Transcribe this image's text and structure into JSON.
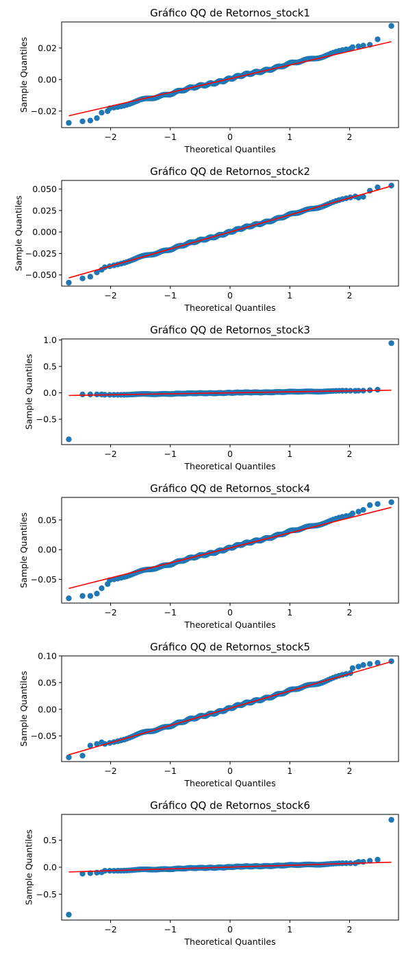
{
  "chart_data": [
    {
      "type": "scatter",
      "title": "Gráfico QQ de Retornos_stock1",
      "xlabel": "Theoretical Quantiles",
      "ylabel": "Sample Quantiles",
      "xlim": [
        -2.82,
        2.82
      ],
      "ylim": [
        -0.0305,
        0.0365
      ],
      "xticks": [
        -2,
        -1,
        0,
        1,
        2
      ],
      "yticks": [
        -0.02,
        0.0,
        0.02
      ],
      "ytick_labels": [
        "−0.02",
        "0.00",
        "0.02"
      ],
      "line": {
        "slope": 0.0087,
        "intercept": 0.0005,
        "color": "#ff0000"
      },
      "tails": {
        "low": [
          [
            -2.7,
            -0.0275
          ],
          [
            -2.47,
            -0.0265
          ],
          [
            -2.34,
            -0.026
          ],
          [
            -2.23,
            -0.0245
          ],
          [
            -2.15,
            -0.021
          ],
          [
            -2.05,
            -0.02
          ]
        ],
        "high": [
          [
            2.05,
            0.0205
          ],
          [
            2.15,
            0.021
          ],
          [
            2.23,
            0.0215
          ],
          [
            2.34,
            0.022
          ],
          [
            2.47,
            0.0255
          ],
          [
            2.7,
            0.034
          ]
        ]
      },
      "body": {
        "slope": 0.0093,
        "intercept": 0.0005,
        "wiggle": 0.0008
      },
      "marker_color": "#1f77b4"
    },
    {
      "type": "scatter",
      "title": "Gráfico QQ de Retornos_stock2",
      "xlabel": "Theoretical Quantiles",
      "ylabel": "Sample Quantiles",
      "xlim": [
        -2.82,
        2.82
      ],
      "ylim": [
        -0.063,
        0.06
      ],
      "xticks": [
        -2,
        -1,
        0,
        1,
        2
      ],
      "yticks": [
        -0.05,
        -0.025,
        0.0,
        0.025,
        0.05
      ],
      "ytick_labels": [
        "−0.050",
        "−0.025",
        "0.000",
        "0.025",
        "0.050"
      ],
      "line": {
        "slope": 0.0198,
        "intercept": 0.0,
        "color": "#ff0000"
      },
      "tails": {
        "low": [
          [
            -2.7,
            -0.059
          ],
          [
            -2.47,
            -0.054
          ],
          [
            -2.34,
            -0.052
          ],
          [
            -2.23,
            -0.047
          ],
          [
            -2.15,
            -0.044
          ]
        ],
        "high": [
          [
            2.15,
            0.04
          ],
          [
            2.23,
            0.041
          ],
          [
            2.34,
            0.048
          ],
          [
            2.47,
            0.052
          ],
          [
            2.7,
            0.054
          ]
        ]
      },
      "body": {
        "slope": 0.0198,
        "intercept": 0.0,
        "wiggle": 0.0012
      },
      "marker_color": "#1f77b4"
    },
    {
      "type": "scatter",
      "title": "Gráfico QQ de Retornos_stock3",
      "xlabel": "Theoretical Quantiles",
      "ylabel": "Sample Quantiles",
      "xlim": [
        -2.82,
        2.82
      ],
      "ylim": [
        -0.98,
        1.02
      ],
      "xticks": [
        -2,
        -1,
        0,
        1,
        2
      ],
      "yticks": [
        -0.5,
        0.0,
        0.5,
        1.0
      ],
      "ytick_labels": [
        "−0.5",
        "0.0",
        "0.5",
        "1.0"
      ],
      "line": {
        "slope": 0.0185,
        "intercept": 0.0,
        "color": "#ff0000"
      },
      "tails": {
        "low": [
          [
            -2.7,
            -0.88
          ],
          [
            -2.47,
            -0.03
          ],
          [
            -2.34,
            -0.03
          ],
          [
            -2.23,
            -0.03
          ],
          [
            -2.15,
            -0.03
          ]
        ],
        "high": [
          [
            2.15,
            0.04
          ],
          [
            2.23,
            0.04
          ],
          [
            2.34,
            0.05
          ],
          [
            2.47,
            0.06
          ],
          [
            2.7,
            0.94
          ]
        ]
      },
      "body": {
        "slope": 0.0185,
        "intercept": 0.0,
        "wiggle": 0.006
      },
      "marker_color": "#1f77b4"
    },
    {
      "type": "scatter",
      "title": "Gráfico QQ de Retornos_stock4",
      "xlabel": "Theoretical Quantiles",
      "ylabel": "Sample Quantiles",
      "xlim": [
        -2.82,
        2.82
      ],
      "ylim": [
        -0.09,
        0.088
      ],
      "xticks": [
        -2,
        -1,
        0,
        1,
        2
      ],
      "yticks": [
        -0.05,
        0.0,
        0.05
      ],
      "ytick_labels": [
        "−0.05",
        "0.00",
        "0.05"
      ],
      "line": {
        "slope": 0.0253,
        "intercept": 0.003,
        "color": "#ff0000"
      },
      "tails": {
        "low": [
          [
            -2.7,
            -0.082
          ],
          [
            -2.47,
            -0.078
          ],
          [
            -2.34,
            -0.078
          ],
          [
            -2.23,
            -0.074
          ],
          [
            -2.15,
            -0.065
          ],
          [
            -2.05,
            -0.058
          ]
        ],
        "high": [
          [
            2.05,
            0.061
          ],
          [
            2.15,
            0.064
          ],
          [
            2.23,
            0.067
          ],
          [
            2.34,
            0.075
          ],
          [
            2.47,
            0.077
          ],
          [
            2.7,
            0.08
          ]
        ]
      },
      "body": {
        "slope": 0.027,
        "intercept": 0.003,
        "wiggle": 0.0018
      },
      "marker_color": "#1f77b4"
    },
    {
      "type": "scatter",
      "title": "Gráfico QQ de Retornos_stock5",
      "xlabel": "Theoretical Quantiles",
      "ylabel": "Sample Quantiles",
      "xlim": [
        -2.82,
        2.82
      ],
      "ylim": [
        -0.098,
        0.1
      ],
      "xticks": [
        -2,
        -1,
        0,
        1,
        2
      ],
      "yticks": [
        -0.05,
        0.0,
        0.05,
        0.1
      ],
      "ytick_labels": [
        "−0.05",
        "0.00",
        "0.05",
        "0.10"
      ],
      "line": {
        "slope": 0.0323,
        "intercept": 0.002,
        "color": "#ff0000"
      },
      "tails": {
        "low": [
          [
            -2.7,
            -0.09
          ],
          [
            -2.47,
            -0.087
          ],
          [
            -2.34,
            -0.068
          ],
          [
            -2.23,
            -0.065
          ],
          [
            -2.15,
            -0.062
          ]
        ],
        "high": [
          [
            2.05,
            0.077
          ],
          [
            2.15,
            0.08
          ],
          [
            2.23,
            0.083
          ],
          [
            2.34,
            0.085
          ],
          [
            2.47,
            0.087
          ],
          [
            2.7,
            0.09
          ]
        ]
      },
      "body": {
        "slope": 0.0323,
        "intercept": 0.002,
        "wiggle": 0.0022
      },
      "marker_color": "#1f77b4"
    },
    {
      "type": "scatter",
      "title": "Gráfico QQ de Retornos_stock6",
      "xlabel": "Theoretical Quantiles",
      "ylabel": "Sample Quantiles",
      "xlim": [
        -2.82,
        2.82
      ],
      "ylim": [
        -0.98,
        0.98
      ],
      "xticks": [
        -2,
        -1,
        0,
        1,
        2
      ],
      "yticks": [
        -0.5,
        0.0,
        0.5
      ],
      "ytick_labels": [
        "−0.5",
        "0.0",
        "0.5"
      ],
      "line": {
        "slope": 0.0335,
        "intercept": 0.003,
        "color": "#ff0000"
      },
      "tails": {
        "low": [
          [
            -2.7,
            -0.88
          ],
          [
            -2.47,
            -0.12
          ],
          [
            -2.34,
            -0.11
          ],
          [
            -2.23,
            -0.1
          ],
          [
            -2.15,
            -0.095
          ]
        ],
        "high": [
          [
            2.15,
            0.1
          ],
          [
            2.23,
            0.1
          ],
          [
            2.34,
            0.12
          ],
          [
            2.47,
            0.14
          ],
          [
            2.7,
            0.88
          ]
        ]
      },
      "body": {
        "slope": 0.034,
        "intercept": 0.003,
        "wiggle": 0.008
      },
      "marker_color": "#1f77b4"
    }
  ]
}
